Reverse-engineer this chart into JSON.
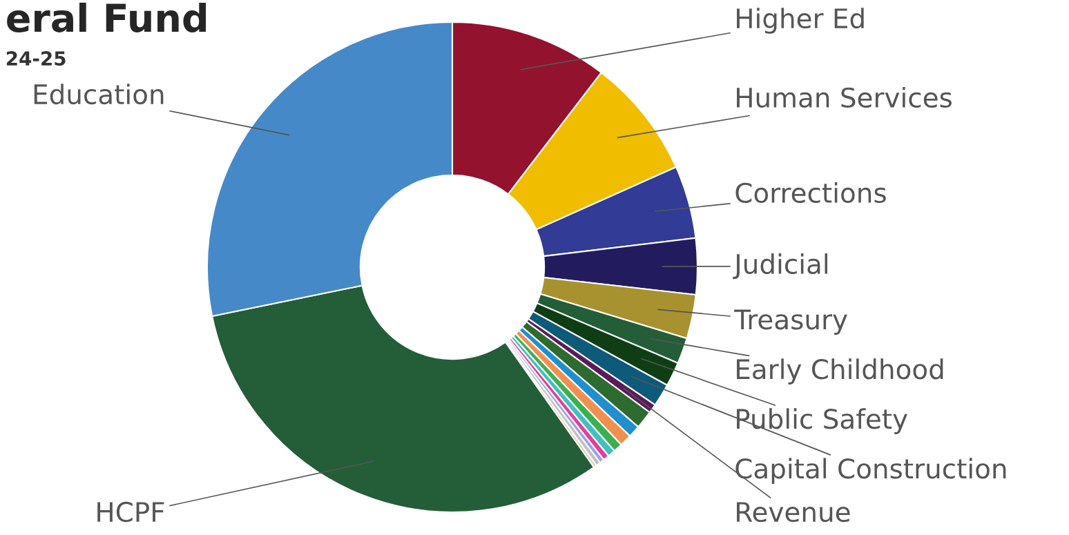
{
  "chart_data": {
    "type": "donut",
    "title": "eral Fund",
    "subtitle": "24-25",
    "categories": [
      "Higher Ed",
      "Human Services",
      "Corrections",
      "Judicial",
      "Treasury",
      "Early Childhood",
      "Public Safety",
      "Capital Construction",
      "Revenue",
      null,
      null,
      null,
      null,
      null,
      null,
      null,
      null,
      null,
      "HCPF",
      "Education"
    ],
    "values": [
      10.4,
      7.9,
      4.8,
      3.7,
      2.9,
      1.7,
      1.6,
      1.5,
      0.6,
      1.2,
      0.8,
      0.8,
      0.6,
      0.5,
      0.4,
      0.3,
      0.3,
      0.2,
      31.6,
      28.2
    ],
    "colors": [
      "#93132f",
      "#f0bd00",
      "#323b95",
      "#221c5e",
      "#a8922f",
      "#235e38",
      "#103e14",
      "#0d5a7a",
      "#5c1a5c",
      "#2e6b2e",
      "#1f8fce",
      "#f09050",
      "#3cb050",
      "#40c0c0",
      "#e040a0",
      "#a0a0f0",
      "#c0c0c0",
      "#e0d0b0",
      "#235e38",
      "#4689c8"
    ],
    "legend": false
  }
}
